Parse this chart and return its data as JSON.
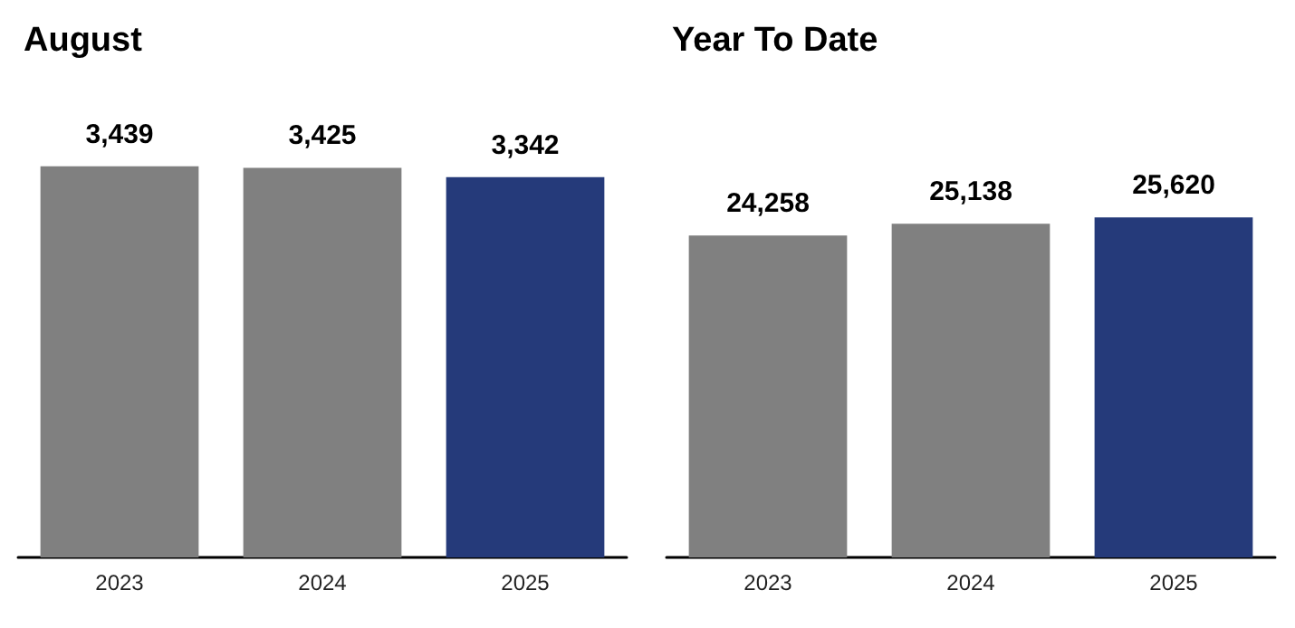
{
  "chart_data": [
    {
      "type": "bar",
      "title": "August",
      "categories": [
        "2023",
        "2024",
        "2025"
      ],
      "values": [
        3439,
        3425,
        3342
      ],
      "value_labels": [
        "3,439",
        "3,425",
        "3,342"
      ],
      "colors": [
        "#808080",
        "#808080",
        "#253a7a"
      ]
    },
    {
      "type": "bar",
      "title": "Year To Date",
      "categories": [
        "2023",
        "2024",
        "2025"
      ],
      "values": [
        24258,
        25138,
        25620
      ],
      "value_labels": [
        "24,258",
        "25,138",
        "25,620"
      ],
      "colors": [
        "#808080",
        "#808080",
        "#253a7a"
      ]
    }
  ]
}
